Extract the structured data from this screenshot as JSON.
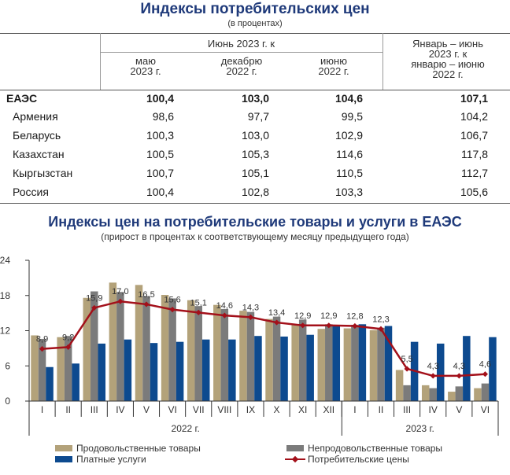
{
  "table": {
    "title": "Индексы потребительских цен",
    "subtitle": "(в процентах)",
    "group_header": "Июнь 2023 г. к",
    "columns": [
      [
        "маю",
        "2023 г."
      ],
      [
        "декабрю",
        "2022 г."
      ],
      [
        "июню",
        "2022 г."
      ],
      [
        "Январь – июнь",
        "2023 г. к",
        "январю – июню",
        "2022 г."
      ]
    ],
    "rows": [
      {
        "name": "ЕАЭС",
        "values": [
          "100,4",
          "103,0",
          "104,6",
          "107,1"
        ],
        "bold": true
      },
      {
        "name": "Армения",
        "values": [
          "98,6",
          "97,7",
          "99,5",
          "104,2"
        ],
        "bold": false
      },
      {
        "name": "Беларусь",
        "values": [
          "100,3",
          "103,0",
          "102,9",
          "106,7"
        ],
        "bold": false
      },
      {
        "name": "Казахстан",
        "values": [
          "100,5",
          "105,3",
          "114,6",
          "117,8"
        ],
        "bold": false
      },
      {
        "name": "Кыргызстан",
        "values": [
          "100,7",
          "105,1",
          "110,5",
          "112,7"
        ],
        "bold": false
      },
      {
        "name": "Россия",
        "values": [
          "100,4",
          "102,8",
          "103,3",
          "105,6"
        ],
        "bold": false
      }
    ]
  },
  "chart_data": {
    "type": "bar",
    "title": "Индексы цен на потребительские товары и услуги в ЕАЭС",
    "subtitle": "(прирост в процентах к соответствующему месяцу предыдущего года)",
    "categories": [
      "I",
      "II",
      "III",
      "IV",
      "V",
      "VI",
      "VII",
      "VIII",
      "IX",
      "X",
      "XI",
      "XII",
      "I",
      "II",
      "III",
      "IV",
      "V",
      "VI"
    ],
    "year_groups": [
      {
        "label": "2022 г.",
        "count": 12
      },
      {
        "label": "2023 г.",
        "count": 6
      }
    ],
    "ylim": [
      0,
      24
    ],
    "yticks": [
      0,
      6,
      12,
      18,
      24
    ],
    "grid": false,
    "legend_position": "bottom",
    "series": [
      {
        "name": "Продовольственные товары",
        "kind": "bar",
        "color": "#b3a27a",
        "values": [
          11.2,
          10.9,
          17.6,
          20.2,
          19.8,
          18.1,
          17.2,
          16.4,
          15.4,
          14.0,
          13.0,
          12.3,
          12.4,
          12.1,
          5.3,
          2.7,
          1.6,
          2.2
        ]
      },
      {
        "name": "Непродовольственные товары",
        "kind": "bar",
        "color": "#7b7b7b",
        "values": [
          10.6,
          11.1,
          18.7,
          18.6,
          17.9,
          17.5,
          16.2,
          15.7,
          15.2,
          14.4,
          13.9,
          13.1,
          13.0,
          12.5,
          2.7,
          2.2,
          2.5,
          3.0
        ]
      },
      {
        "name": "Платные услуги",
        "kind": "bar",
        "color": "#0d4a8f",
        "values": [
          5.8,
          6.4,
          9.8,
          10.5,
          9.9,
          10.1,
          10.5,
          10.5,
          11.1,
          11.0,
          11.3,
          13.0,
          13.1,
          12.8,
          10.1,
          9.8,
          11.1,
          10.9
        ]
      },
      {
        "name": "Потребительские цены",
        "kind": "line",
        "color": "#a3101a",
        "values": [
          8.9,
          9.2,
          15.9,
          17.0,
          16.5,
          15.6,
          15.1,
          14.6,
          14.3,
          13.4,
          12.9,
          12.9,
          12.8,
          12.3,
          5.5,
          4.3,
          4.3,
          4.6
        ],
        "labels": [
          "8,9",
          "9,2",
          "15,9",
          "17,0",
          "16,5",
          "15,6",
          "15,1",
          "14,6",
          "14,3",
          "13,4",
          "12,9",
          "12,9",
          "12,8",
          "12,3",
          "5,5",
          "4,3",
          "4,3",
          "4,6"
        ]
      }
    ]
  }
}
